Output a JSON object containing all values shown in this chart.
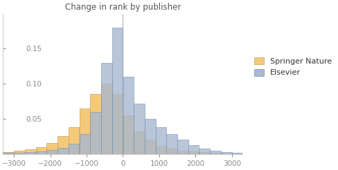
{
  "title": "Change in rank by publisher",
  "xlim": [
    -3300,
    3300
  ],
  "ylim": [
    0,
    0.2
  ],
  "yticks": [
    0.05,
    0.1,
    0.15
  ],
  "xticks": [
    -3000,
    -2000,
    -1000,
    0,
    1000,
    2000,
    3000
  ],
  "bin_edges": [
    -3300,
    -3000,
    -2700,
    -2400,
    -2100,
    -1800,
    -1500,
    -1200,
    -900,
    -600,
    -300,
    0,
    300,
    600,
    900,
    1200,
    1500,
    1800,
    2100,
    2400,
    2700,
    3000,
    3300
  ],
  "springer_values": [
    0.003,
    0.005,
    0.007,
    0.01,
    0.016,
    0.025,
    0.038,
    0.065,
    0.085,
    0.1,
    0.085,
    0.055,
    0.032,
    0.02,
    0.012,
    0.008,
    0.005,
    0.004,
    0.003,
    0.002,
    0.001,
    0.001
  ],
  "elsevier_values": [
    0.002,
    0.002,
    0.003,
    0.004,
    0.006,
    0.009,
    0.015,
    0.028,
    0.06,
    0.13,
    0.18,
    0.11,
    0.072,
    0.05,
    0.038,
    0.028,
    0.02,
    0.013,
    0.008,
    0.005,
    0.003,
    0.002
  ],
  "springer_color": "#F5C97A",
  "elsevier_color": "#A8B8D0",
  "springer_edgecolor": "#C8A060",
  "elsevier_edgecolor": "#7090B0",
  "legend_springer": "Springer Nature",
  "legend_elsevier": "Elsevier",
  "background_color": "#ffffff",
  "title_color": "#555555",
  "tick_color": "#888888",
  "spine_color": "#BBBBBB",
  "ytick_inside": true
}
